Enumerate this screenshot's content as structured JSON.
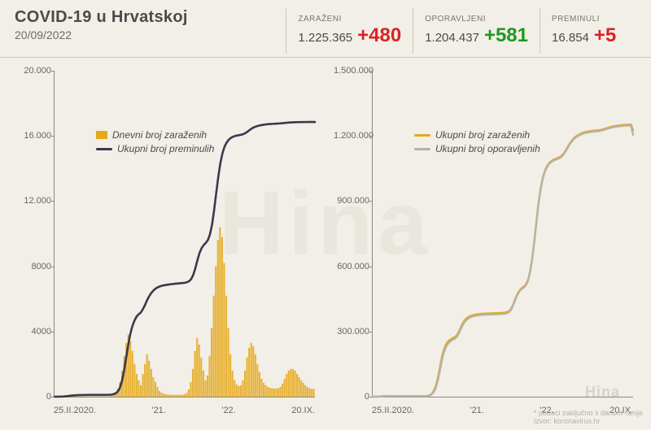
{
  "header": {
    "title": "COVID-19 u Hrvatskoj",
    "date": "20/09/2022",
    "stats": [
      {
        "label": "ZARAŽENI",
        "total": "1.225.365",
        "delta": "+480",
        "delta_color": "#d22"
      },
      {
        "label": "OPORAVLJENI",
        "total": "1.204.437",
        "delta": "+581",
        "delta_color": "#1a9b1a"
      },
      {
        "label": "PREMINULI",
        "total": "16.854",
        "delta": "+5",
        "delta_color": "#d22"
      }
    ]
  },
  "footer": {
    "note": "* podaci zaključno s danom ranije",
    "source": "Izvor: koronavirus.hr",
    "watermark": "Hina"
  },
  "colors": {
    "background": "#f2efe9",
    "axis": "#888888",
    "text": "#4a4a4a",
    "bar_orange": "#e6a817",
    "line_dark": "#3a3949",
    "line_orange": "#e6a817",
    "line_grey": "#b7b2a6"
  },
  "chart_left": {
    "type": "bar+line",
    "ylim": [
      0,
      20000
    ],
    "yticks": [
      0,
      4000,
      8000,
      12000,
      16000,
      20000
    ],
    "ytick_labels": [
      "0",
      "4000",
      "8000",
      "12.000",
      "16.000",
      "20.000"
    ],
    "xlabels": [
      "25.II.2020.",
      "'21.",
      "'22.",
      "20.IX."
    ],
    "legend": [
      {
        "swatch": "bar",
        "color": "#e6a817",
        "text": "Dnevni broj zaraženih"
      },
      {
        "swatch": "line",
        "color": "#3a3949",
        "text": "Ukupni broj preminulih"
      }
    ],
    "bars_color": "#e6a817",
    "bars": [
      0,
      0,
      10,
      20,
      30,
      40,
      50,
      40,
      30,
      25,
      20,
      20,
      20,
      18,
      15,
      15,
      15,
      12,
      10,
      10,
      10,
      10,
      10,
      10,
      10,
      10,
      30,
      60,
      120,
      250,
      500,
      900,
      1600,
      2500,
      3300,
      3800,
      3400,
      2800,
      2000,
      1400,
      1000,
      700,
      1400,
      2000,
      2600,
      2200,
      1700,
      1200,
      900,
      600,
      350,
      250,
      180,
      150,
      130,
      120,
      110,
      110,
      110,
      110,
      110,
      120,
      150,
      230,
      450,
      900,
      1700,
      2800,
      3600,
      3200,
      2400,
      1600,
      1000,
      1300,
      2500,
      4200,
      6200,
      8000,
      9600,
      10400,
      9800,
      8200,
      6200,
      4200,
      2600,
      1600,
      1000,
      750,
      650,
      700,
      1000,
      1600,
      2400,
      3000,
      3300,
      3100,
      2600,
      2000,
      1500,
      1100,
      850,
      700,
      600,
      550,
      520,
      500,
      500,
      520,
      600,
      800,
      1100,
      1400,
      1600,
      1700,
      1700,
      1600,
      1400,
      1200,
      1000,
      850,
      700,
      600,
      520,
      480,
      480
    ],
    "line_color": "#3a3949",
    "line": [
      0,
      0,
      2,
      5,
      10,
      20,
      35,
      50,
      65,
      78,
      88,
      95,
      100,
      103,
      105,
      106,
      107,
      108,
      109,
      110,
      110,
      110,
      110,
      111,
      111,
      111,
      115,
      125,
      150,
      200,
      300,
      500,
      900,
      1500,
      2300,
      3100,
      3800,
      4300,
      4650,
      4900,
      5050,
      5150,
      5350,
      5600,
      5900,
      6150,
      6350,
      6500,
      6620,
      6700,
      6760,
      6800,
      6830,
      6855,
      6875,
      6892,
      6908,
      6922,
      6935,
      6948,
      6960,
      6972,
      6990,
      7020,
      7080,
      7200,
      7450,
      7850,
      8350,
      8800,
      9100,
      9300,
      9430,
      9600,
      9950,
      10550,
      11450,
      12500,
      13500,
      14350,
      14950,
      15350,
      15600,
      15770,
      15880,
      15950,
      15995,
      16025,
      16050,
      16075,
      16115,
      16180,
      16270,
      16370,
      16460,
      16530,
      16580,
      16620,
      16650,
      16675,
      16695,
      16710,
      16722,
      16732,
      16740,
      16748,
      16756,
      16764,
      16774,
      16786,
      16800,
      16812,
      16822,
      16830,
      16836,
      16841,
      16845,
      16848,
      16850,
      16851,
      16852,
      16853,
      16853,
      16854,
      16854
    ]
  },
  "chart_right": {
    "type": "line",
    "ylim": [
      0,
      1500000
    ],
    "yticks": [
      0,
      300000,
      600000,
      900000,
      1200000,
      1500000
    ],
    "ytick_labels": [
      "0",
      "300.000",
      "600.000",
      "900.000",
      "1.200.000",
      "1.500.000"
    ],
    "xlabels": [
      "25.II.2020.",
      "'21.",
      "'22.",
      "20.IX."
    ],
    "legend": [
      {
        "swatch": "line",
        "color": "#e6a817",
        "text": "Ukupni broj zaraženih"
      },
      {
        "swatch": "line",
        "color": "#b7b2a6",
        "text": "Ukupni broj oporavljenih"
      }
    ],
    "series": [
      {
        "color": "#e6a817",
        "width": 2.4,
        "data": [
          0,
          50,
          250,
          700,
          1300,
          1900,
          2300,
          2500,
          2600,
          2650,
          2680,
          2700,
          2710,
          2718,
          2724,
          2728,
          2732,
          2735,
          2738,
          2740,
          2742,
          2744,
          2746,
          2748,
          2750,
          2752,
          3200,
          5500,
          12000,
          25000,
          48000,
          85000,
          135000,
          185000,
          220000,
          242000,
          255000,
          263000,
          269000,
          273000,
          282000,
          298000,
          320000,
          340000,
          354000,
          363000,
          369000,
          373000,
          376000,
          378000,
          379500,
          380600,
          381400,
          382000,
          382500,
          382950,
          383370,
          383770,
          384160,
          384550,
          384940,
          385350,
          385900,
          386900,
          389200,
          394500,
          406000,
          427000,
          453000,
          475000,
          490000,
          500000,
          507000,
          517000,
          538000,
          578000,
          640000,
          720000,
          810000,
          895000,
          960000,
          1008000,
          1040000,
          1061000,
          1075000,
          1084000,
          1090000,
          1094500,
          1098000,
          1102000,
          1109000,
          1120000,
          1135000,
          1152000,
          1168000,
          1181000,
          1191000,
          1199000,
          1205000,
          1210000,
          1214000,
          1217000,
          1219300,
          1221100,
          1222600,
          1223800,
          1224800,
          1225600,
          1226800,
          1228700,
          1231400,
          1234500,
          1237600,
          1240400,
          1242800,
          1244800,
          1246500,
          1247900,
          1249100,
          1250100,
          1250900,
          1251500,
          1252000,
          1252400,
          1225365
        ]
      },
      {
        "color": "#b7b2a6",
        "width": 2.4,
        "data": [
          0,
          10,
          120,
          400,
          900,
          1500,
          1950,
          2200,
          2350,
          2450,
          2520,
          2570,
          2600,
          2620,
          2635,
          2645,
          2652,
          2658,
          2663,
          2667,
          2670,
          2673,
          2676,
          2678,
          2680,
          2682,
          2900,
          4600,
          9500,
          20000,
          39000,
          72000,
          120000,
          170000,
          207000,
          231000,
          246000,
          255000,
          261500,
          266000,
          275000,
          291000,
          312000,
          332000,
          346500,
          356000,
          362500,
          367000,
          370000,
          372200,
          373900,
          375100,
          376000,
          376700,
          377250,
          377750,
          378200,
          378630,
          379050,
          379470,
          379890,
          380330,
          380920,
          382000,
          384400,
          389800,
          401400,
          422500,
          448600,
          470700,
          485800,
          495900,
          502900,
          512900,
          533900,
          573900,
          635900,
          715900,
          805900,
          890900,
          955900,
          1003900,
          1035900,
          1056900,
          1070900,
          1079900,
          1085900,
          1090400,
          1093900,
          1097900,
          1104900,
          1115900,
          1130900,
          1147900,
          1163900,
          1176900,
          1186900,
          1194900,
          1200900,
          1205900,
          1209900,
          1212900,
          1215200,
          1217000,
          1218500,
          1219700,
          1220700,
          1221500,
          1222700,
          1224600,
          1227300,
          1230400,
          1233500,
          1236300,
          1238700,
          1240700,
          1242400,
          1243800,
          1245000,
          1246000,
          1246800,
          1247400,
          1247900,
          1248300,
          1204437
        ]
      }
    ]
  }
}
